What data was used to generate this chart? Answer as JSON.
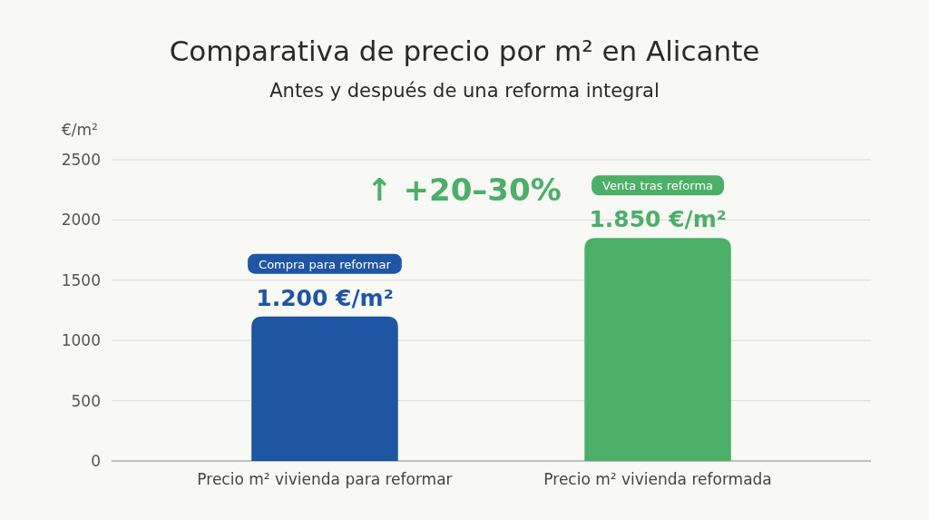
{
  "chart_data": {
    "type": "bar",
    "title": "Comparativa de precio por m² en Alicante",
    "subtitle": "Antes y después de una reforma integral",
    "ylabel": "€/m²",
    "categories": [
      "Precio m² vivienda para reformar",
      "Precio m² vivienda reformada"
    ],
    "values": [
      1200,
      1850
    ],
    "colors": [
      "#1f56a3",
      "#4caf68"
    ],
    "value_labels": [
      "1.200 €/m²",
      "1.850 €/m²"
    ],
    "ylim": [
      0,
      2500
    ],
    "yticks": [
      0,
      500,
      1000,
      1500,
      2000,
      2500
    ],
    "grid": "y",
    "annotations": [
      "Compra para reformar",
      "Venta tras reforma",
      "↑ +20–30%"
    ]
  }
}
